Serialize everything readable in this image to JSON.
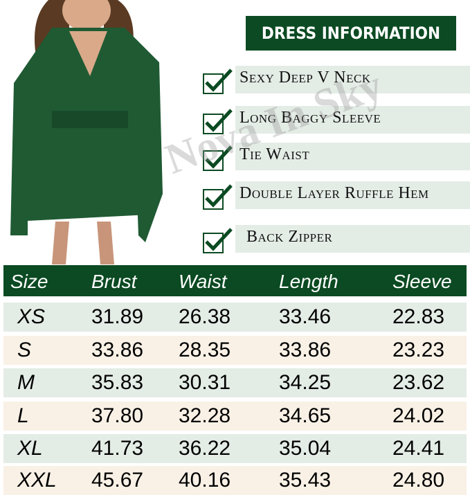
{
  "title": "DRESS INFORMATION",
  "features": [
    "Sexy Deep V Neck",
    "Long Baggy Sleeve",
    "Tie Waist",
    "Double Layer Ruffle Hem",
    "Back Zipper"
  ],
  "watermark": "Nova In Sky",
  "colors": {
    "brand": "#0b4a22",
    "row_green": "#e4ece6",
    "row_cream": "#f9f1e6"
  },
  "table": {
    "headers": [
      "Size",
      "Brust",
      "Waist",
      "Length",
      "Sleeve"
    ],
    "rows": [
      [
        "XS",
        "31.89",
        "26.38",
        "33.46",
        "22.83"
      ],
      [
        "S",
        "33.86",
        "28.35",
        "33.86",
        "23.23"
      ],
      [
        "M",
        "35.83",
        "30.31",
        "34.25",
        "23.62"
      ],
      [
        "L",
        "37.80",
        "32.28",
        "34.65",
        "24.02"
      ],
      [
        "XL",
        "41.73",
        "36.22",
        "35.04",
        "24.41"
      ],
      [
        "XXL",
        "45.67",
        "40.16",
        "35.43",
        "24.80"
      ]
    ]
  }
}
